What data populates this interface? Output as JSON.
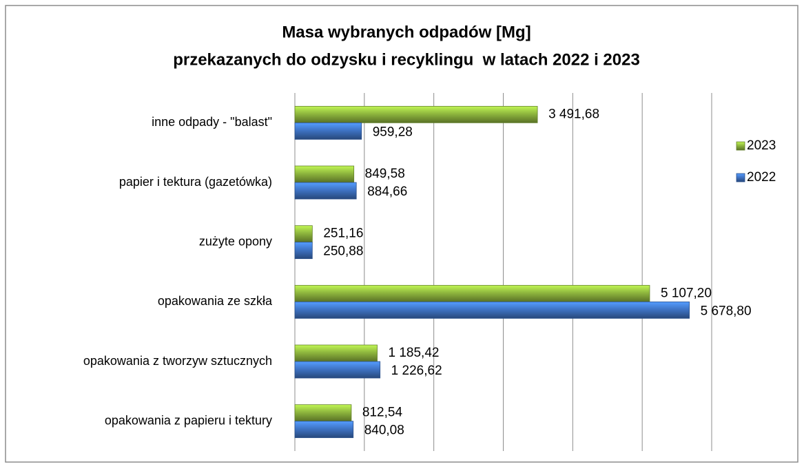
{
  "chart_data": {
    "type": "hbar",
    "title": [
      "Masa wybranych odpadów [Mg]",
      "przekazanych do odzysku i recyklingu  w latach 2022 i 2023"
    ],
    "categories": [
      "inne odpady - \"balast\"",
      "papier i tektura (gazetówka)",
      "zużyte opony",
      "opakowania ze szkła",
      "opakowania z tworzyw sztucznych",
      "opakowania z papieru i tektury"
    ],
    "series": [
      {
        "name": "2023",
        "color": "#8fb73e",
        "values": [
          3491.68,
          849.58,
          251.16,
          5107.2,
          1185.42,
          812.54
        ],
        "value_labels": [
          "3 491,68",
          "849,58",
          "251,16",
          "5 107,20",
          "1 185,42",
          "812,54"
        ]
      },
      {
        "name": "2022",
        "color": "#3f74c6",
        "values": [
          959.28,
          884.66,
          250.88,
          5678.8,
          1226.62,
          840.08
        ],
        "value_labels": [
          "959,28",
          "884,66",
          "250,88",
          "5 678,80",
          "1 226,62",
          "840,08"
        ]
      }
    ],
    "xlim": [
      0,
      6000
    ],
    "xticks": [
      0,
      1000,
      2000,
      3000,
      4000,
      5000,
      6000
    ],
    "grid": true
  }
}
